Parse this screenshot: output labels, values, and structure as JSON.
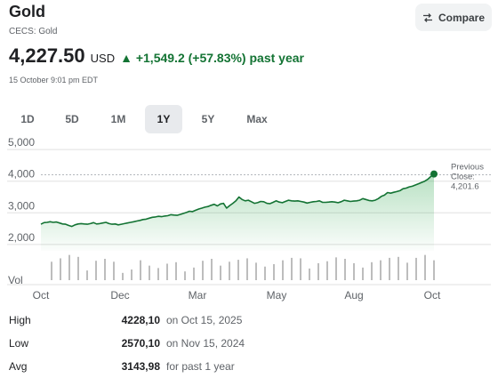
{
  "header": {
    "title": "Gold",
    "subtitle": "CECS: Gold",
    "compare_label": "Compare"
  },
  "quote": {
    "price": "4,227.50",
    "currency": "USD",
    "change": "▲ +1,549.2 (+57.83%) past year",
    "timestamp": "15 October 9:01 pm EDT"
  },
  "range_tabs": [
    {
      "label": "1D",
      "active": false
    },
    {
      "label": "5D",
      "active": false
    },
    {
      "label": "1M",
      "active": false
    },
    {
      "label": "1Y",
      "active": true
    },
    {
      "label": "5Y",
      "active": false
    },
    {
      "label": "Max",
      "active": false
    }
  ],
  "colors": {
    "line": "#137333",
    "area_top": "#34a853",
    "volume": "#bdbdbd",
    "grid": "#e0e0e0",
    "axis_text": "#5f6368"
  },
  "chart_data": {
    "type": "line",
    "x_tick_labels": [
      "Oct",
      "Dec",
      "Mar",
      "May",
      "Aug",
      "Oct"
    ],
    "y_tick_labels": [
      "5,000",
      "4,000",
      "3,000",
      "2,000"
    ],
    "y_ticks": [
      5000,
      4000,
      3000,
      2000
    ],
    "ylim": [
      1800,
      5200
    ],
    "volume_label": "Vol",
    "previous_close": {
      "label_line1": "Previous",
      "label_line2": "Close:",
      "value": 4201.6,
      "value_text": "4,201.6"
    },
    "series": [
      {
        "values": [
          2640,
          2690,
          2700,
          2720,
          2700,
          2710,
          2680,
          2650,
          2640,
          2600,
          2570,
          2620,
          2650,
          2660,
          2650,
          2640,
          2660,
          2690,
          2650,
          2660,
          2680,
          2700,
          2660,
          2640,
          2650,
          2620,
          2640,
          2660,
          2680,
          2700,
          2720,
          2740,
          2760,
          2790,
          2800,
          2830,
          2860,
          2870,
          2890,
          2880,
          2900,
          2910,
          2940,
          2930,
          2920,
          2950,
          2980,
          3010,
          3050,
          3040,
          3080,
          3120,
          3150,
          3180,
          3200,
          3240,
          3270,
          3220,
          3280,
          3300,
          3150,
          3230,
          3300,
          3380,
          3500,
          3420,
          3380,
          3400,
          3350,
          3300,
          3320,
          3360,
          3350,
          3300,
          3290,
          3330,
          3380,
          3340,
          3320,
          3360,
          3400,
          3380,
          3370,
          3380,
          3360,
          3340,
          3310,
          3330,
          3350,
          3360,
          3380,
          3330,
          3330,
          3340,
          3350,
          3340,
          3320,
          3350,
          3400,
          3380,
          3360,
          3370,
          3380,
          3400,
          3450,
          3420,
          3390,
          3380,
          3400,
          3450,
          3520,
          3560,
          3640,
          3620,
          3650,
          3670,
          3700,
          3760,
          3780,
          3820,
          3840,
          3880,
          3920,
          3960,
          4000,
          4060,
          4150,
          4227.5
        ]
      }
    ],
    "volume": [
      38,
      45,
      52,
      48,
      20,
      40,
      44,
      38,
      15,
      22,
      41,
      30,
      25,
      34,
      37,
      18,
      26,
      40,
      44,
      30,
      38,
      42,
      45,
      36,
      28,
      33,
      41,
      46,
      45,
      24,
      35,
      39,
      47,
      44,
      35,
      26,
      37,
      41,
      46,
      48,
      36,
      46,
      52,
      41
    ]
  },
  "stats": [
    {
      "label": "High",
      "value": "4228,10",
      "note": "on Oct 15, 2025"
    },
    {
      "label": "Low",
      "value": "2570,10",
      "note": "on Nov 15, 2024"
    },
    {
      "label": "Avg",
      "value": "3143,98",
      "note": "for past 1 year"
    }
  ]
}
